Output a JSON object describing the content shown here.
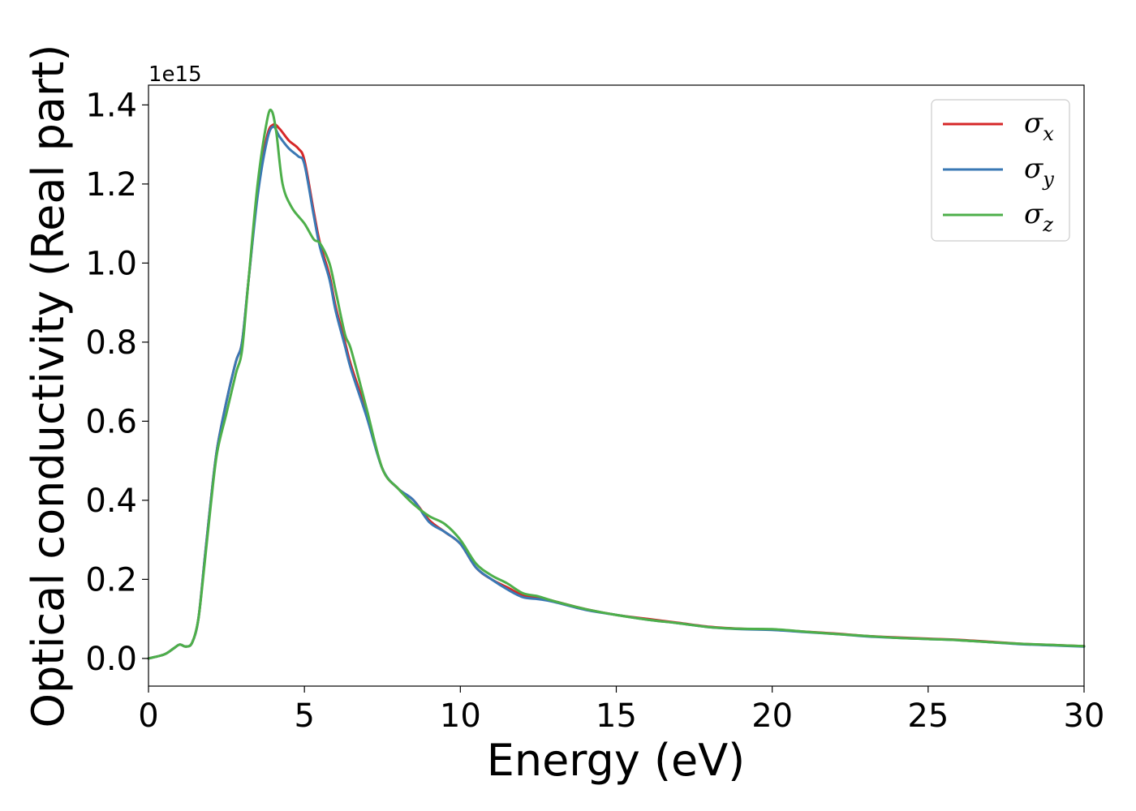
{
  "chart_data": {
    "type": "line",
    "xlabel": "Energy (eV)",
    "ylabel": "Optical conductivity (Real part)",
    "y_offset_text": "1e15",
    "xlim": [
      0,
      30
    ],
    "ylim": [
      -0.07,
      1.45
    ],
    "y_scale_factor": 1000000000000000.0,
    "x_ticks": [
      0,
      5,
      10,
      15,
      20,
      25,
      30
    ],
    "x_tick_labels": [
      "0",
      "5",
      "10",
      "15",
      "20",
      "25",
      "30"
    ],
    "y_ticks": [
      0.0,
      0.2,
      0.4,
      0.6,
      0.8,
      1.0,
      1.2,
      1.4
    ],
    "y_tick_labels": [
      "0.0",
      "0.2",
      "0.4",
      "0.6",
      "0.8",
      "1.0",
      "1.2",
      "1.4"
    ],
    "grid": false,
    "legend_position": "top-right",
    "series": [
      {
        "name": "σx",
        "legend_symbol": "σ",
        "legend_subscript": "x",
        "color": "#d62728",
        "x": [
          0,
          0.5,
          0.8,
          1.0,
          1.2,
          1.4,
          1.6,
          1.8,
          2.0,
          2.2,
          2.5,
          2.8,
          3.0,
          3.2,
          3.5,
          3.8,
          4.0,
          4.2,
          4.5,
          4.8,
          5.0,
          5.3,
          5.5,
          5.8,
          6.0,
          6.3,
          6.5,
          7.0,
          7.5,
          8.0,
          8.5,
          9.0,
          9.5,
          10.0,
          10.5,
          11.0,
          11.5,
          12.0,
          12.5,
          13.0,
          14.0,
          15.0,
          16.0,
          17.0,
          18.0,
          19.0,
          20.0,
          21.0,
          22.0,
          23.0,
          24.0,
          25.0,
          26.0,
          27.0,
          28.0,
          29.0,
          30.0
        ],
        "y": [
          0.0,
          0.01,
          0.025,
          0.035,
          0.03,
          0.04,
          0.1,
          0.25,
          0.4,
          0.53,
          0.65,
          0.75,
          0.8,
          0.95,
          1.18,
          1.32,
          1.35,
          1.34,
          1.31,
          1.29,
          1.26,
          1.13,
          1.05,
          0.97,
          0.89,
          0.8,
          0.74,
          0.62,
          0.48,
          0.43,
          0.4,
          0.35,
          0.32,
          0.29,
          0.23,
          0.2,
          0.18,
          0.16,
          0.155,
          0.145,
          0.125,
          0.11,
          0.1,
          0.09,
          0.08,
          0.075,
          0.073,
          0.068,
          0.063,
          0.057,
          0.053,
          0.05,
          0.047,
          0.042,
          0.037,
          0.034,
          0.031
        ]
      },
      {
        "name": "σy",
        "legend_symbol": "σ",
        "legend_subscript": "y",
        "color": "#3a78b4",
        "x": [
          0,
          0.5,
          0.8,
          1.0,
          1.2,
          1.4,
          1.6,
          1.8,
          2.0,
          2.2,
          2.5,
          2.8,
          3.0,
          3.2,
          3.5,
          3.8,
          4.0,
          4.2,
          4.5,
          4.8,
          5.0,
          5.3,
          5.5,
          5.8,
          6.0,
          6.3,
          6.5,
          7.0,
          7.5,
          8.0,
          8.5,
          9.0,
          9.5,
          10.0,
          10.5,
          11.0,
          11.5,
          12.0,
          12.5,
          13.0,
          14.0,
          15.0,
          16.0,
          17.0,
          18.0,
          19.0,
          20.0,
          21.0,
          22.0,
          23.0,
          24.0,
          25.0,
          26.0,
          27.0,
          28.0,
          29.0,
          30.0
        ],
        "y": [
          0.0,
          0.01,
          0.025,
          0.035,
          0.03,
          0.04,
          0.1,
          0.25,
          0.4,
          0.53,
          0.65,
          0.75,
          0.8,
          0.95,
          1.17,
          1.31,
          1.345,
          1.32,
          1.29,
          1.27,
          1.25,
          1.12,
          1.04,
          0.96,
          0.88,
          0.79,
          0.73,
          0.61,
          0.48,
          0.43,
          0.4,
          0.345,
          0.32,
          0.29,
          0.23,
          0.2,
          0.175,
          0.155,
          0.15,
          0.143,
          0.123,
          0.11,
          0.098,
          0.089,
          0.079,
          0.074,
          0.072,
          0.067,
          0.062,
          0.056,
          0.052,
          0.049,
          0.046,
          0.041,
          0.036,
          0.033,
          0.03
        ]
      },
      {
        "name": "σz",
        "legend_symbol": "σ",
        "legend_subscript": "z",
        "color": "#4daf4a",
        "x": [
          0,
          0.5,
          0.8,
          1.0,
          1.2,
          1.4,
          1.6,
          1.8,
          2.0,
          2.2,
          2.5,
          2.8,
          3.0,
          3.2,
          3.5,
          3.8,
          3.95,
          4.1,
          4.3,
          4.6,
          5.0,
          5.3,
          5.5,
          5.8,
          6.0,
          6.3,
          6.5,
          7.0,
          7.5,
          8.0,
          8.5,
          9.0,
          9.5,
          10.0,
          10.5,
          11.0,
          11.5,
          12.0,
          12.5,
          13.0,
          14.0,
          15.0,
          16.0,
          17.0,
          18.0,
          19.0,
          20.0,
          21.0,
          22.0,
          23.0,
          24.0,
          25.0,
          26.0,
          27.0,
          28.0,
          29.0,
          30.0
        ],
        "y": [
          0.0,
          0.01,
          0.025,
          0.035,
          0.03,
          0.04,
          0.1,
          0.24,
          0.39,
          0.52,
          0.62,
          0.72,
          0.78,
          0.95,
          1.2,
          1.36,
          1.385,
          1.33,
          1.2,
          1.14,
          1.1,
          1.06,
          1.05,
          1.0,
          0.93,
          0.82,
          0.78,
          0.63,
          0.48,
          0.43,
          0.39,
          0.36,
          0.34,
          0.3,
          0.24,
          0.21,
          0.19,
          0.165,
          0.157,
          0.145,
          0.125,
          0.11,
          0.098,
          0.089,
          0.079,
          0.075,
          0.074,
          0.068,
          0.062,
          0.057,
          0.052,
          0.049,
          0.046,
          0.041,
          0.037,
          0.034,
          0.031
        ]
      }
    ]
  }
}
